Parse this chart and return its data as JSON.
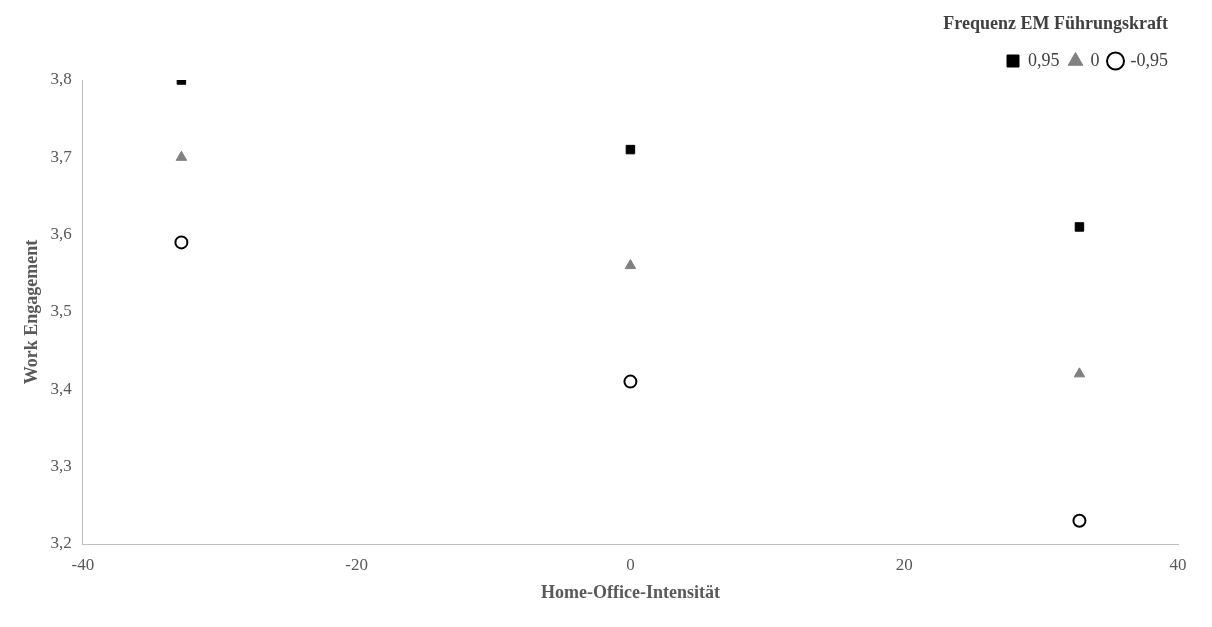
{
  "chart_data": {
    "type": "scatter",
    "xlabel": "Home-Office-Intensität",
    "ylabel": "Work Engagement",
    "legend_title": "Frequenz EM Führungskraft",
    "legend": "top right",
    "grid": false,
    "xlim": [
      -40,
      40
    ],
    "xticks": [
      -40,
      -20,
      0,
      20,
      40
    ],
    "ylim": [
      3.2,
      3.8
    ],
    "yticks": [
      {
        "value": 3.2,
        "label": "3,2"
      },
      {
        "value": 3.3,
        "label": "3,3"
      },
      {
        "value": 3.4,
        "label": "3,4"
      },
      {
        "value": 3.5,
        "label": "3,5"
      },
      {
        "value": 3.6,
        "label": "3,6"
      },
      {
        "value": 3.7,
        "label": "3,7"
      },
      {
        "value": 3.8,
        "label": "3,8"
      }
    ],
    "x": [
      -32.8,
      0,
      32.8
    ],
    "series": [
      {
        "name": "0,95",
        "color": "#000000",
        "marker": "square",
        "values": [
          3.8,
          3.71,
          3.61
        ]
      },
      {
        "name": "0",
        "color": "#808080",
        "marker": "triangle",
        "values": [
          3.7,
          3.56,
          3.42
        ]
      },
      {
        "name": "-0,95",
        "color": "#000000",
        "marker": "circle",
        "values": [
          3.59,
          3.41,
          3.23
        ]
      }
    ]
  }
}
